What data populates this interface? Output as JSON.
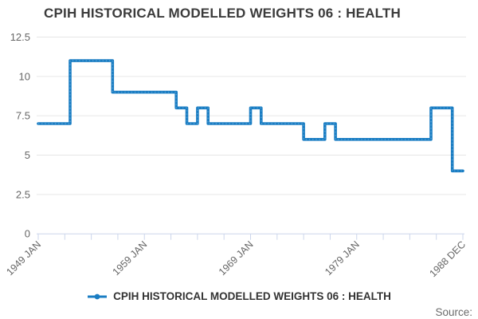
{
  "header": {
    "title": "CPIH HISTORICAL MODELLED WEIGHTS 06 : HEALTH"
  },
  "legend": {
    "label": "CPIH HISTORICAL MODELLED WEIGHTS 06 : HEALTH"
  },
  "footer": {
    "source_label": "Source:"
  },
  "chart_data": {
    "type": "line",
    "step": "after",
    "title": "CPIH HISTORICAL MODELLED WEIGHTS 06 : HEALTH",
    "x": [
      1949,
      1950,
      1951,
      1952,
      1953,
      1954,
      1955,
      1956,
      1957,
      1958,
      1959,
      1960,
      1961,
      1962,
      1963,
      1964,
      1965,
      1966,
      1967,
      1968,
      1969,
      1970,
      1971,
      1972,
      1973,
      1974,
      1975,
      1976,
      1977,
      1978,
      1979,
      1980,
      1981,
      1982,
      1983,
      1984,
      1985,
      1986,
      1987,
      1988
    ],
    "series": [
      {
        "name": "CPIH HISTORICAL MODELLED WEIGHTS 06 : HEALTH",
        "values": [
          7,
          7,
          7,
          11,
          11,
          11,
          11,
          9,
          9,
          9,
          9,
          9,
          9,
          8,
          7,
          8,
          7,
          7,
          7,
          7,
          8,
          7,
          7,
          7,
          7,
          6,
          6,
          7,
          6,
          6,
          6,
          6,
          6,
          6,
          6,
          6,
          6,
          8,
          8,
          4
        ]
      }
    ],
    "x_axis": {
      "min": 1949,
      "max": 1989,
      "tick_interval": 2.5,
      "labels": [
        {
          "pos": 1949,
          "text": "1949 JAN"
        },
        {
          "pos": 1959,
          "text": "1959 JAN"
        },
        {
          "pos": 1969,
          "text": "1969 JAN"
        },
        {
          "pos": 1979,
          "text": "1979 JAN"
        },
        {
          "pos": 1989,
          "text": "1988 DEC"
        }
      ]
    },
    "y_axis": {
      "min": 0,
      "max": 12.5,
      "ticks": [
        0,
        2.5,
        5,
        7.5,
        10,
        12.5
      ]
    },
    "grid": "horizontal-only",
    "legend_position": "bottom-center",
    "colors": {
      "line": "#1a7dc3",
      "marker_dots": "#7ab8e0",
      "grid": "#e6e6e6",
      "axis": "#ccd6eb",
      "tick_label": "#666666"
    }
  }
}
